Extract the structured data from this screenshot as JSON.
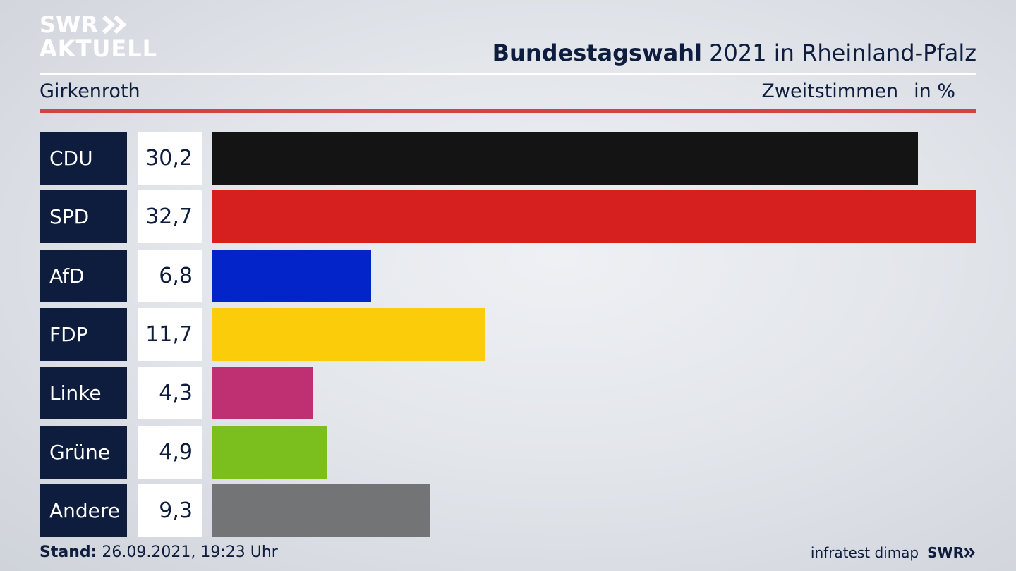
{
  "logo": {
    "line1": "SWR",
    "line2": "AKTUELL"
  },
  "header": {
    "title_bold": "Bundestagswahl",
    "title_rest": " 2021 in Rheinland-Pfalz",
    "location": "Girkenroth",
    "measure": "Zweitstimmen",
    "unit": "in %"
  },
  "colors": {
    "label_bg": "#0e1d3d",
    "accent_rule": "#d0463f"
  },
  "chart_data": {
    "type": "bar",
    "orientation": "horizontal",
    "categories": [
      "CDU",
      "SPD",
      "AfD",
      "FDP",
      "Linke",
      "Grüne",
      "Andere"
    ],
    "values": [
      30.2,
      32.7,
      6.8,
      11.7,
      4.3,
      4.9,
      9.3
    ],
    "value_labels": [
      "30,2",
      "32,7",
      "6,8",
      "11,7",
      "4,3",
      "4,9",
      "9,3"
    ],
    "colors": [
      "#141414",
      "#d62020",
      "#0324c8",
      "#fbcc0a",
      "#bf3073",
      "#7abf1e",
      "#737475"
    ],
    "title": "Bundestagswahl 2021 in Rheinland-Pfalz",
    "subtitle": "Girkenroth",
    "xlabel": "Zweitstimmen",
    "ylabel": "",
    "unit": "in %",
    "xlim": [
      0,
      32.7
    ]
  },
  "footer": {
    "stand_label": "Stand:",
    "stand_value": " 26.09.2021, 19:23 Uhr",
    "source": "infratest dimap",
    "brand": "SWR"
  }
}
